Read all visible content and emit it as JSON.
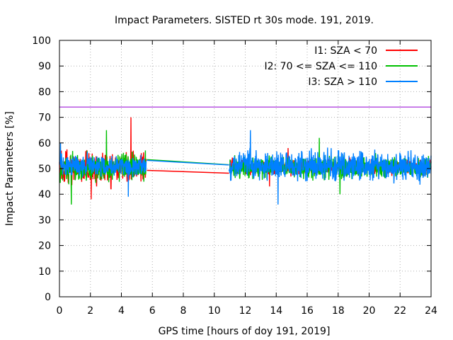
{
  "chart_data": {
    "type": "line",
    "title": "Impact Parameters. SISTED rt 30s mode. 191, 2019.",
    "xlabel": "GPS time [hours of doy 191, 2019]",
    "ylabel": "Impact Parameters [%]",
    "xlim": [
      0,
      24
    ],
    "ylim": [
      0,
      100
    ],
    "x_ticks": [
      0,
      2,
      4,
      6,
      8,
      10,
      12,
      14,
      16,
      18,
      20,
      22,
      24
    ],
    "y_ticks": [
      0,
      10,
      20,
      30,
      40,
      50,
      60,
      70,
      80,
      90,
      100
    ],
    "grid": true,
    "legend_position": "top-right",
    "reference_line": {
      "y": 74,
      "color": "#9400d3"
    },
    "data_gap_hours": [
      5.65,
      10.95
    ],
    "series": [
      {
        "name": "I1: SZA < 70",
        "color": "#ff0000",
        "segments": [
          {
            "x_start": 0,
            "x_end": 5.6,
            "center": 50.5,
            "low": 38,
            "high": 70
          },
          {
            "x_start": 11.0,
            "x_end": 24,
            "center": 50.5,
            "low": 43,
            "high": 58
          }
        ],
        "gap_line": [
          [
            5.65,
            49.3
          ],
          [
            10.95,
            48.2
          ]
        ]
      },
      {
        "name": "I2: 70 <= SZA <= 110",
        "color": "#00c000",
        "segments": [
          {
            "x_start": 0,
            "x_end": 5.6,
            "center": 50.5,
            "low": 36,
            "high": 65
          },
          {
            "x_start": 11.0,
            "x_end": 24,
            "center": 50.5,
            "low": 40,
            "high": 62
          }
        ],
        "gap_line": [
          [
            5.65,
            53.5
          ],
          [
            10.95,
            51.5
          ]
        ]
      },
      {
        "name": "I3: SZA > 110",
        "color": "#0080ff",
        "segments": [
          {
            "x_start": 0,
            "x_end": 5.6,
            "center": 51,
            "low": 39,
            "high": 60
          },
          {
            "x_start": 10.95,
            "x_end": 24,
            "center": 51,
            "low": 36,
            "high": 65
          }
        ],
        "gap_line": [
          [
            5.65,
            53.2
          ],
          [
            10.95,
            51.4
          ]
        ]
      }
    ]
  }
}
